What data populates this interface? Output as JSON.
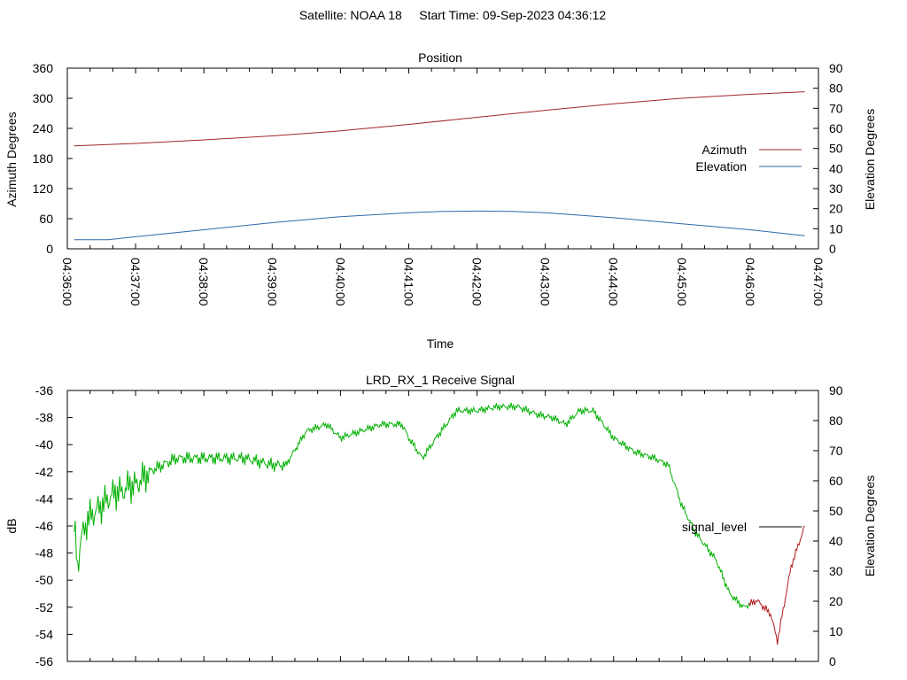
{
  "header": {
    "title": "Satellite: NOAA 18     Start Time: 09-Sep-2023 04:36:12"
  },
  "colors": {
    "azimuth": "#a0262d",
    "elevation": "#2b6aa6",
    "signal_good": "#00b000",
    "signal_low": "#b01818",
    "axis": "#000000"
  },
  "chart_data": [
    {
      "type": "line",
      "title": "Position",
      "xlabel": "Time",
      "ylabel": "Azimuth Degrees",
      "y2label": "Elevation Degrees",
      "x_ticks": [
        "04:36:00",
        "04:37:00",
        "04:38:00",
        "04:39:00",
        "04:40:00",
        "04:41:00",
        "04:42:00",
        "04:43:00",
        "04:44:00",
        "04:45:00",
        "04:46:00",
        "04:47:00"
      ],
      "x_range_min": [
        0,
        11
      ],
      "y_ticks": [
        "0",
        "60",
        "120",
        "180",
        "240",
        "300",
        "360"
      ],
      "ylim": [
        0,
        360
      ],
      "y2_ticks": [
        "0",
        "10",
        "20",
        "30",
        "40",
        "50",
        "60",
        "70",
        "80",
        "90"
      ],
      "y2lim": [
        0,
        90
      ],
      "legend": "right",
      "series": [
        {
          "name": "Azimuth",
          "axis": "left",
          "x": [
            0.1,
            1,
            2,
            3,
            4,
            5,
            6,
            7,
            8,
            9,
            10,
            10.8
          ],
          "values": [
            205,
            210,
            217,
            225,
            235,
            248,
            262,
            276,
            289,
            300,
            308,
            313
          ]
        },
        {
          "name": "Elevation",
          "axis": "right",
          "x": [
            0.1,
            0.6,
            1,
            2,
            3,
            4,
            5,
            5.5,
            6,
            6.5,
            7,
            8,
            9,
            10,
            10.8
          ],
          "values": [
            4.5,
            4.5,
            6,
            9.5,
            13,
            16,
            18,
            18.6,
            18.8,
            18.6,
            18,
            15.5,
            12.5,
            9.5,
            6.5
          ]
        }
      ]
    },
    {
      "type": "line",
      "title": "LRD_RX_1 Receive Signal",
      "ylabel": "dB",
      "y2label": "Elevation Degrees",
      "x_range_min": [
        0,
        11
      ],
      "y_ticks": [
        "-36",
        "-38",
        "-40",
        "-42",
        "-44",
        "-46",
        "-48",
        "-50",
        "-52",
        "-54",
        "-56"
      ],
      "ylim": [
        -56,
        -36
      ],
      "y2_ticks": [
        "0",
        "10",
        "20",
        "30",
        "40",
        "50",
        "60",
        "70",
        "80",
        "90"
      ],
      "y2lim": [
        0,
        90
      ],
      "legend": "right",
      "series": [
        {
          "name": "signal_level",
          "x": [
            0.1,
            0.15,
            0.2,
            0.3,
            0.4,
            0.5,
            0.6,
            0.7,
            0.8,
            0.9,
            1.0,
            1.2,
            1.4,
            1.6,
            1.8,
            2.0,
            2.3,
            2.6,
            3.0,
            3.2,
            3.5,
            3.8,
            4.0,
            4.3,
            4.6,
            4.9,
            5.0,
            5.2,
            5.4,
            5.7,
            6.0,
            6.3,
            6.6,
            6.9,
            7.1,
            7.3,
            7.5,
            7.7,
            8.0,
            8.3,
            8.6,
            8.8,
            9.0,
            9.2,
            9.5,
            9.7,
            9.9,
            10.1,
            10.3,
            10.4,
            10.6,
            10.8
          ],
          "values": [
            -46,
            -49,
            -47,
            -45.5,
            -45,
            -44.5,
            -44,
            -43.5,
            -43.5,
            -43,
            -43,
            -42,
            -41.5,
            -41,
            -41,
            -41,
            -41,
            -41,
            -41.5,
            -41.5,
            -39,
            -38.5,
            -39.5,
            -39,
            -38.5,
            -38.5,
            -39.5,
            -41,
            -39.5,
            -37.5,
            -37.5,
            -37.2,
            -37.2,
            -37.8,
            -38,
            -38.5,
            -37.5,
            -37.5,
            -39.5,
            -40.5,
            -41,
            -41.5,
            -44.5,
            -46.5,
            -48.5,
            -51,
            -52,
            -51.5,
            -52.5,
            -54.5,
            -49,
            -46
          ]
        }
      ]
    }
  ]
}
